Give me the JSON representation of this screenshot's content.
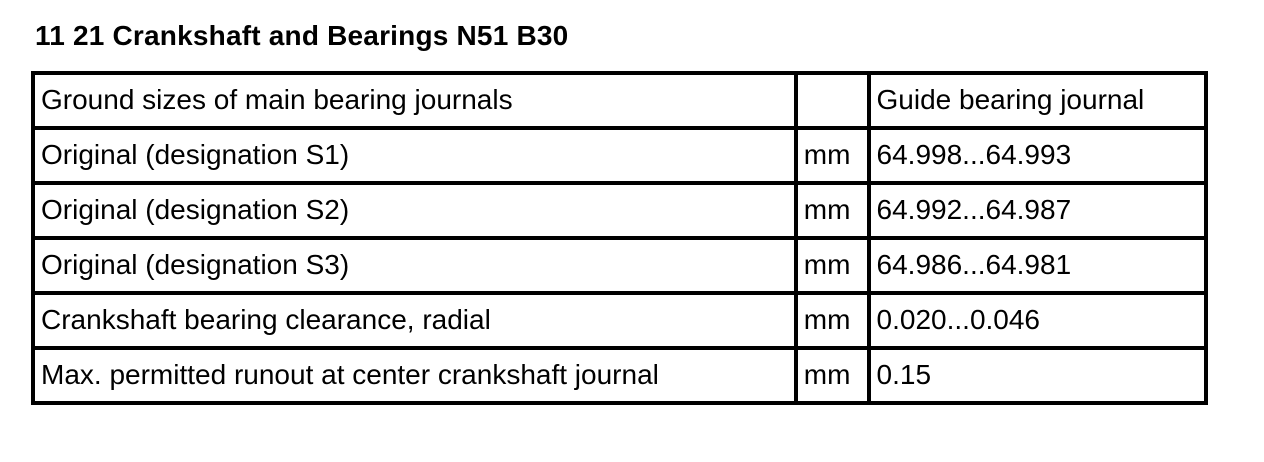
{
  "page": {
    "title": "11 21 Crankshaft and Bearings N51 B30"
  },
  "table": {
    "header": {
      "label": "Ground sizes of main bearing journals",
      "unit": "",
      "value": "Guide bearing journal"
    },
    "rows": [
      {
        "label": "Original (designation S1)",
        "unit": "mm",
        "value": "64.998...64.993"
      },
      {
        "label": "Original (designation S2)",
        "unit": "mm",
        "value": "64.992...64.987"
      },
      {
        "label": "Original (designation S3)",
        "unit": "mm",
        "value": "64.986...64.981"
      },
      {
        "label": "Crankshaft bearing clearance, radial",
        "unit": "mm",
        "value": "0.020...0.046"
      },
      {
        "label": "Max. permitted runout at center crankshaft journal",
        "unit": "mm",
        "value": "0.15"
      }
    ]
  }
}
